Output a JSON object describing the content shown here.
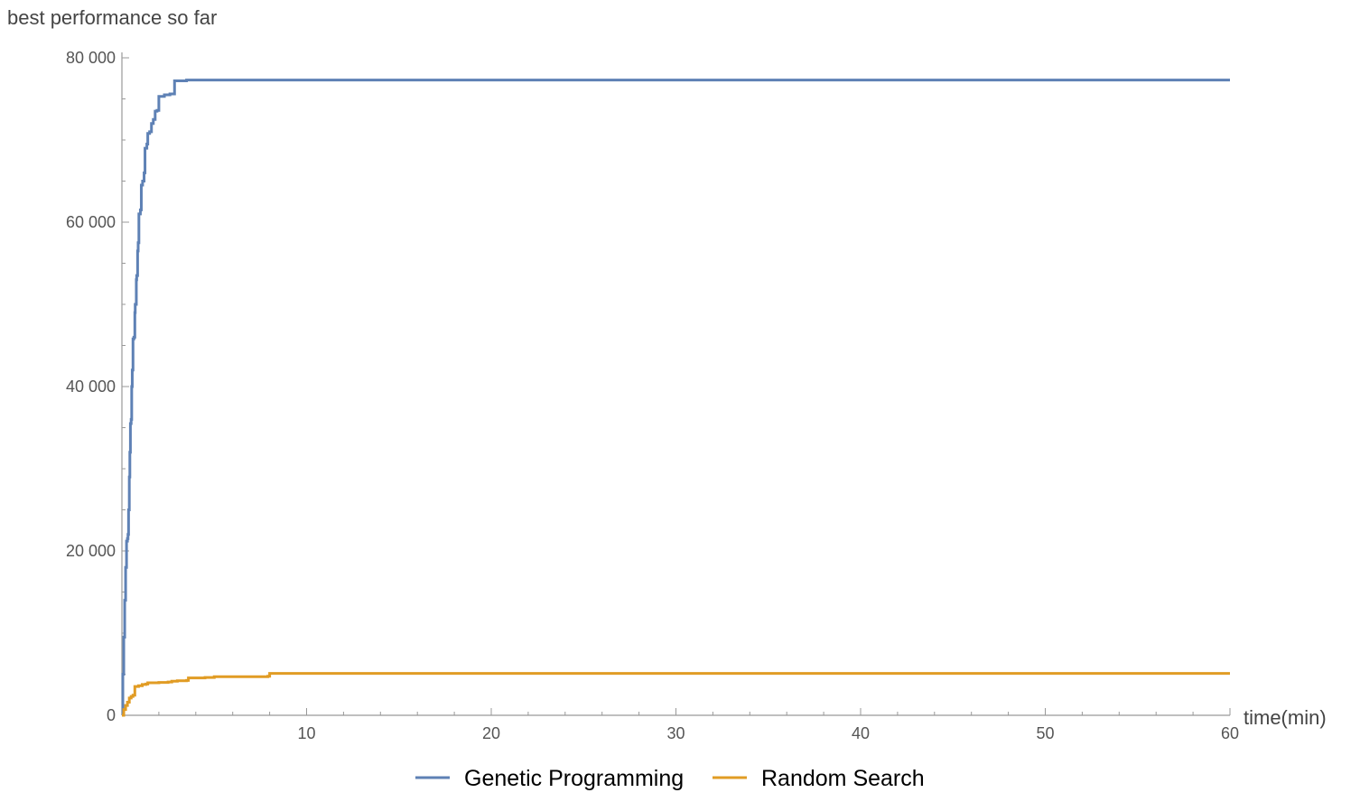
{
  "chart_data": {
    "type": "line",
    "title": "",
    "xlabel": "time(min)",
    "ylabel": "best performance so far",
    "xlim": [
      0,
      60
    ],
    "ylim": [
      0,
      80000
    ],
    "x_ticks": [
      10,
      20,
      30,
      40,
      50,
      60
    ],
    "x_tick_labels": [
      "10",
      "20",
      "30",
      "40",
      "50",
      "60"
    ],
    "y_ticks": [
      0,
      20000,
      40000,
      60000,
      80000
    ],
    "y_tick_labels": [
      "0",
      "20 000",
      "40 000",
      "60 000",
      "80 000"
    ],
    "grid": false,
    "legend_position": "bottom-center",
    "series": [
      {
        "name": "Genetic Programming",
        "color": "#5E81B5",
        "step": true,
        "points": [
          [
            0,
            0
          ],
          [
            0.05,
            5000
          ],
          [
            0.1,
            9500
          ],
          [
            0.15,
            14000
          ],
          [
            0.2,
            18000
          ],
          [
            0.25,
            21200
          ],
          [
            0.3,
            21500
          ],
          [
            0.33,
            22000
          ],
          [
            0.36,
            25000
          ],
          [
            0.4,
            29000
          ],
          [
            0.43,
            32000
          ],
          [
            0.46,
            35500
          ],
          [
            0.5,
            36000
          ],
          [
            0.53,
            40000
          ],
          [
            0.56,
            42000
          ],
          [
            0.6,
            45800
          ],
          [
            0.65,
            46000
          ],
          [
            0.7,
            49000
          ],
          [
            0.72,
            50000
          ],
          [
            0.78,
            53000
          ],
          [
            0.8,
            53500
          ],
          [
            0.85,
            56500
          ],
          [
            0.88,
            57500
          ],
          [
            0.92,
            61000
          ],
          [
            1.0,
            61500
          ],
          [
            1.05,
            64500
          ],
          [
            1.12,
            65000
          ],
          [
            1.2,
            66000
          ],
          [
            1.25,
            69000
          ],
          [
            1.35,
            69500
          ],
          [
            1.4,
            70800
          ],
          [
            1.5,
            71000
          ],
          [
            1.6,
            72000
          ],
          [
            1.7,
            72500
          ],
          [
            1.8,
            73500
          ],
          [
            1.9,
            73600
          ],
          [
            2.0,
            75300
          ],
          [
            2.3,
            75500
          ],
          [
            2.6,
            75600
          ],
          [
            2.85,
            77200
          ],
          [
            3.5,
            77300
          ],
          [
            60,
            77300
          ]
        ]
      },
      {
        "name": "Random Search",
        "color": "#E19C24",
        "step": true,
        "points": [
          [
            0,
            0
          ],
          [
            0.1,
            700
          ],
          [
            0.2,
            1200
          ],
          [
            0.3,
            1600
          ],
          [
            0.4,
            2100
          ],
          [
            0.5,
            2300
          ],
          [
            0.6,
            2450
          ],
          [
            0.7,
            3500
          ],
          [
            0.9,
            3600
          ],
          [
            1.1,
            3750
          ],
          [
            1.3,
            3800
          ],
          [
            1.4,
            3950
          ],
          [
            2.0,
            4000
          ],
          [
            2.5,
            4050
          ],
          [
            2.7,
            4150
          ],
          [
            3.0,
            4200
          ],
          [
            3.5,
            4250
          ],
          [
            3.6,
            4550
          ],
          [
            4.5,
            4600
          ],
          [
            5.0,
            4700
          ],
          [
            7.9,
            4750
          ],
          [
            8.0,
            5100
          ],
          [
            60,
            5100
          ]
        ]
      }
    ]
  }
}
